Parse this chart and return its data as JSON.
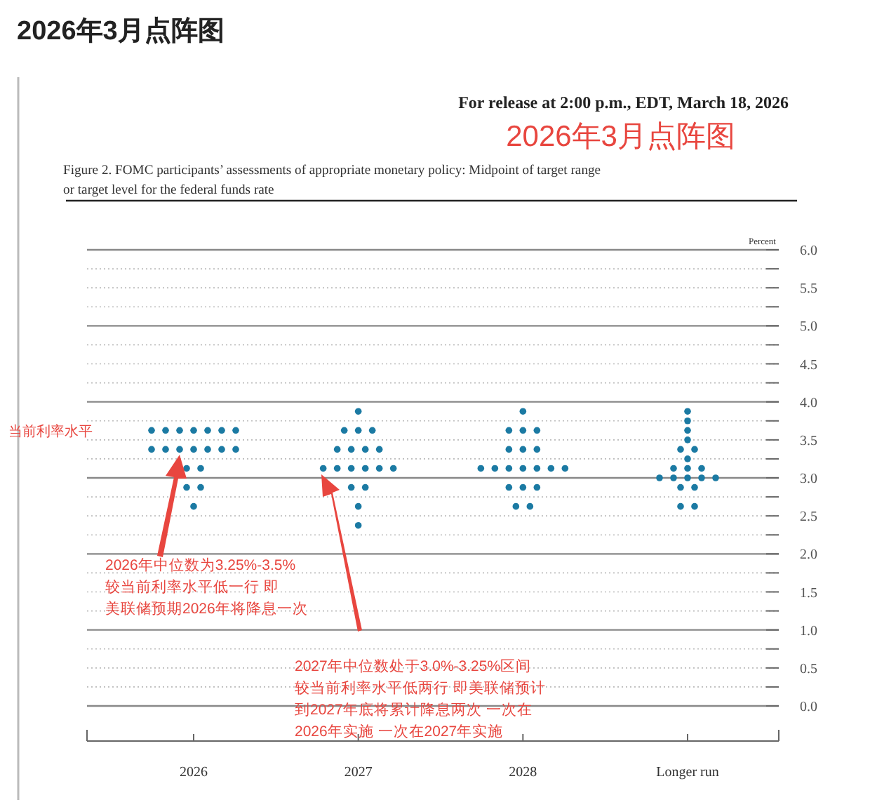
{
  "chart_data": {
    "type": "scatter",
    "title": "2026年3月点阵图",
    "subtitle": "For release at 2:00 p.m., EDT, March 18, 2026",
    "ylabel": "Percent",
    "categories": [
      "2026",
      "2027",
      "2028",
      "Longer run"
    ],
    "series": [
      {
        "color": "#1b7aa3",
        "values": [
          3.625,
          3.875,
          3.875,
          3.875
        ]
      },
      {
        "color": "#1b7aa3",
        "values": [
          3.625,
          3.625,
          3.625,
          3.75
        ]
      },
      {
        "color": "#1b7aa3",
        "values": [
          3.625,
          3.625,
          3.625,
          3.625
        ]
      },
      {
        "color": "#1b7aa3",
        "values": [
          3.625,
          3.625,
          3.625,
          3.5
        ]
      },
      {
        "color": "#1b7aa3",
        "values": [
          3.625,
          3.375,
          3.375,
          3.375
        ]
      },
      {
        "color": "#1b7aa3",
        "values": [
          3.625,
          3.375,
          3.375,
          3.375
        ]
      },
      {
        "color": "#1b7aa3",
        "values": [
          3.625,
          3.375,
          3.375,
          3.25
        ]
      },
      {
        "color": "#1b7aa3",
        "values": [
          3.375,
          3.375,
          3.125,
          3.125
        ]
      },
      {
        "color": "#1b7aa3",
        "values": [
          3.375,
          3.125,
          3.125,
          3.125
        ]
      },
      {
        "color": "#1b7aa3",
        "values": [
          3.375,
          3.125,
          3.125,
          3.125
        ]
      },
      {
        "color": "#1b7aa3",
        "values": [
          3.375,
          3.125,
          3.125,
          3.0
        ]
      },
      {
        "color": "#1b7aa3",
        "values": [
          3.375,
          3.125,
          3.125,
          3.0
        ]
      },
      {
        "color": "#1b7aa3",
        "values": [
          3.375,
          3.125,
          3.125,
          3.0
        ]
      },
      {
        "color": "#1b7aa3",
        "values": [
          3.375,
          3.125,
          3.125,
          3.0
        ]
      },
      {
        "color": "#1b7aa3",
        "values": [
          3.125,
          2.875,
          2.875,
          3.0
        ]
      },
      {
        "color": "#1b7aa3",
        "values": [
          3.125,
          2.875,
          2.875,
          2.875
        ]
      },
      {
        "color": "#1b7aa3",
        "values": [
          2.875,
          2.625,
          2.875,
          2.875
        ]
      },
      {
        "color": "#1b7aa3",
        "values": [
          2.875,
          2.375,
          2.625,
          2.625
        ]
      },
      {
        "color": "#1b7aa3",
        "values": [
          2.625,
          null,
          2.625,
          2.625
        ]
      }
    ],
    "ylim": [
      0,
      6
    ],
    "yticks": [
      {
        "value": 0,
        "label": "0.0"
      },
      {
        "value": 0.25,
        "label": null
      },
      {
        "value": 0.5,
        "label": "0.5"
      },
      {
        "value": 0.75,
        "label": null
      },
      {
        "value": 1,
        "label": "1.0"
      },
      {
        "value": 1.25,
        "label": null
      },
      {
        "value": 1.5,
        "label": "1.5"
      },
      {
        "value": 1.75,
        "label": null
      },
      {
        "value": 2,
        "label": "2.0"
      },
      {
        "value": 2.25,
        "label": null
      },
      {
        "value": 2.5,
        "label": "2.5"
      },
      {
        "value": 2.75,
        "label": null
      },
      {
        "value": 3,
        "label": "3.0"
      },
      {
        "value": 3.25,
        "label": null
      },
      {
        "value": 3.5,
        "label": "3.5"
      },
      {
        "value": 3.75,
        "label": null
      },
      {
        "value": 4,
        "label": "4.0"
      },
      {
        "value": 4.25,
        "label": null
      },
      {
        "value": 4.5,
        "label": "4.5"
      },
      {
        "value": 4.75,
        "label": null
      },
      {
        "value": 5,
        "label": "5.0"
      },
      {
        "value": 5.25,
        "label": null
      },
      {
        "value": 5.5,
        "label": "5.5"
      },
      {
        "value": 5.75,
        "label": null
      },
      {
        "value": 6,
        "label": "6.0"
      }
    ],
    "grid": "y",
    "marker": "circle",
    "annotations": [
      "2026年3月点阵图",
      "Figure 2. FOMC participants’ assessments of appropriate monetary policy: Midpoint of target range or target level for the federal funds rate",
      "当前利率水平",
      "2026年中位数为3.25%-3.5%较当前利率水平低一行 即美联储预期2026年将降息一次",
      "2027年中位数处于3.0%-3.25%区间较当前利率水平低两行 即美联储预计到2027年底将累计降息两次 一次在2026年实施 一次在2027年实施"
    ]
  }
}
